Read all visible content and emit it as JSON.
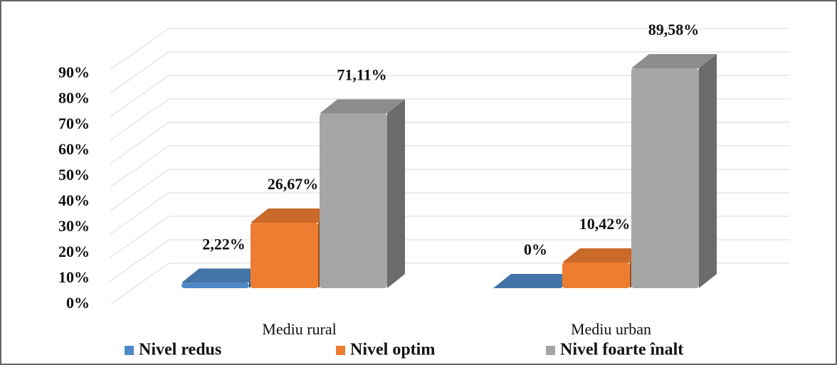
{
  "chart_data": {
    "type": "bar3d",
    "categories": [
      "Mediu rural",
      "Mediu urban"
    ],
    "series": [
      {
        "name": "Nivel redus",
        "color": "#4f88c6",
        "values": [
          2.22,
          0
        ],
        "value_labels": [
          "2,22%",
          "0%"
        ]
      },
      {
        "name": "Nivel optim",
        "color": "#ed7d31",
        "values": [
          26.67,
          10.42
        ],
        "value_labels": [
          "26,67%",
          "10,42%"
        ]
      },
      {
        "name": "Nivel foarte înalt",
        "color": "#a5a5a5",
        "values": [
          71.11,
          89.58
        ],
        "value_labels": [
          "71,11%",
          "89,58%"
        ]
      }
    ],
    "ylim": [
      0,
      100
    ],
    "yticks": [
      {
        "value": 0,
        "label": "0%"
      },
      {
        "value": 10,
        "label": "10%"
      },
      {
        "value": 20,
        "label": "20%"
      },
      {
        "value": 30,
        "label": "30%"
      },
      {
        "value": 40,
        "label": "40%"
      },
      {
        "value": 50,
        "label": "50%"
      },
      {
        "value": 60,
        "label": "60%"
      },
      {
        "value": 70,
        "label": "70%"
      },
      {
        "value": 80,
        "label": "80%"
      },
      {
        "value": 90,
        "label": "90%"
      }
    ],
    "grid": true,
    "legend": "bottom"
  }
}
